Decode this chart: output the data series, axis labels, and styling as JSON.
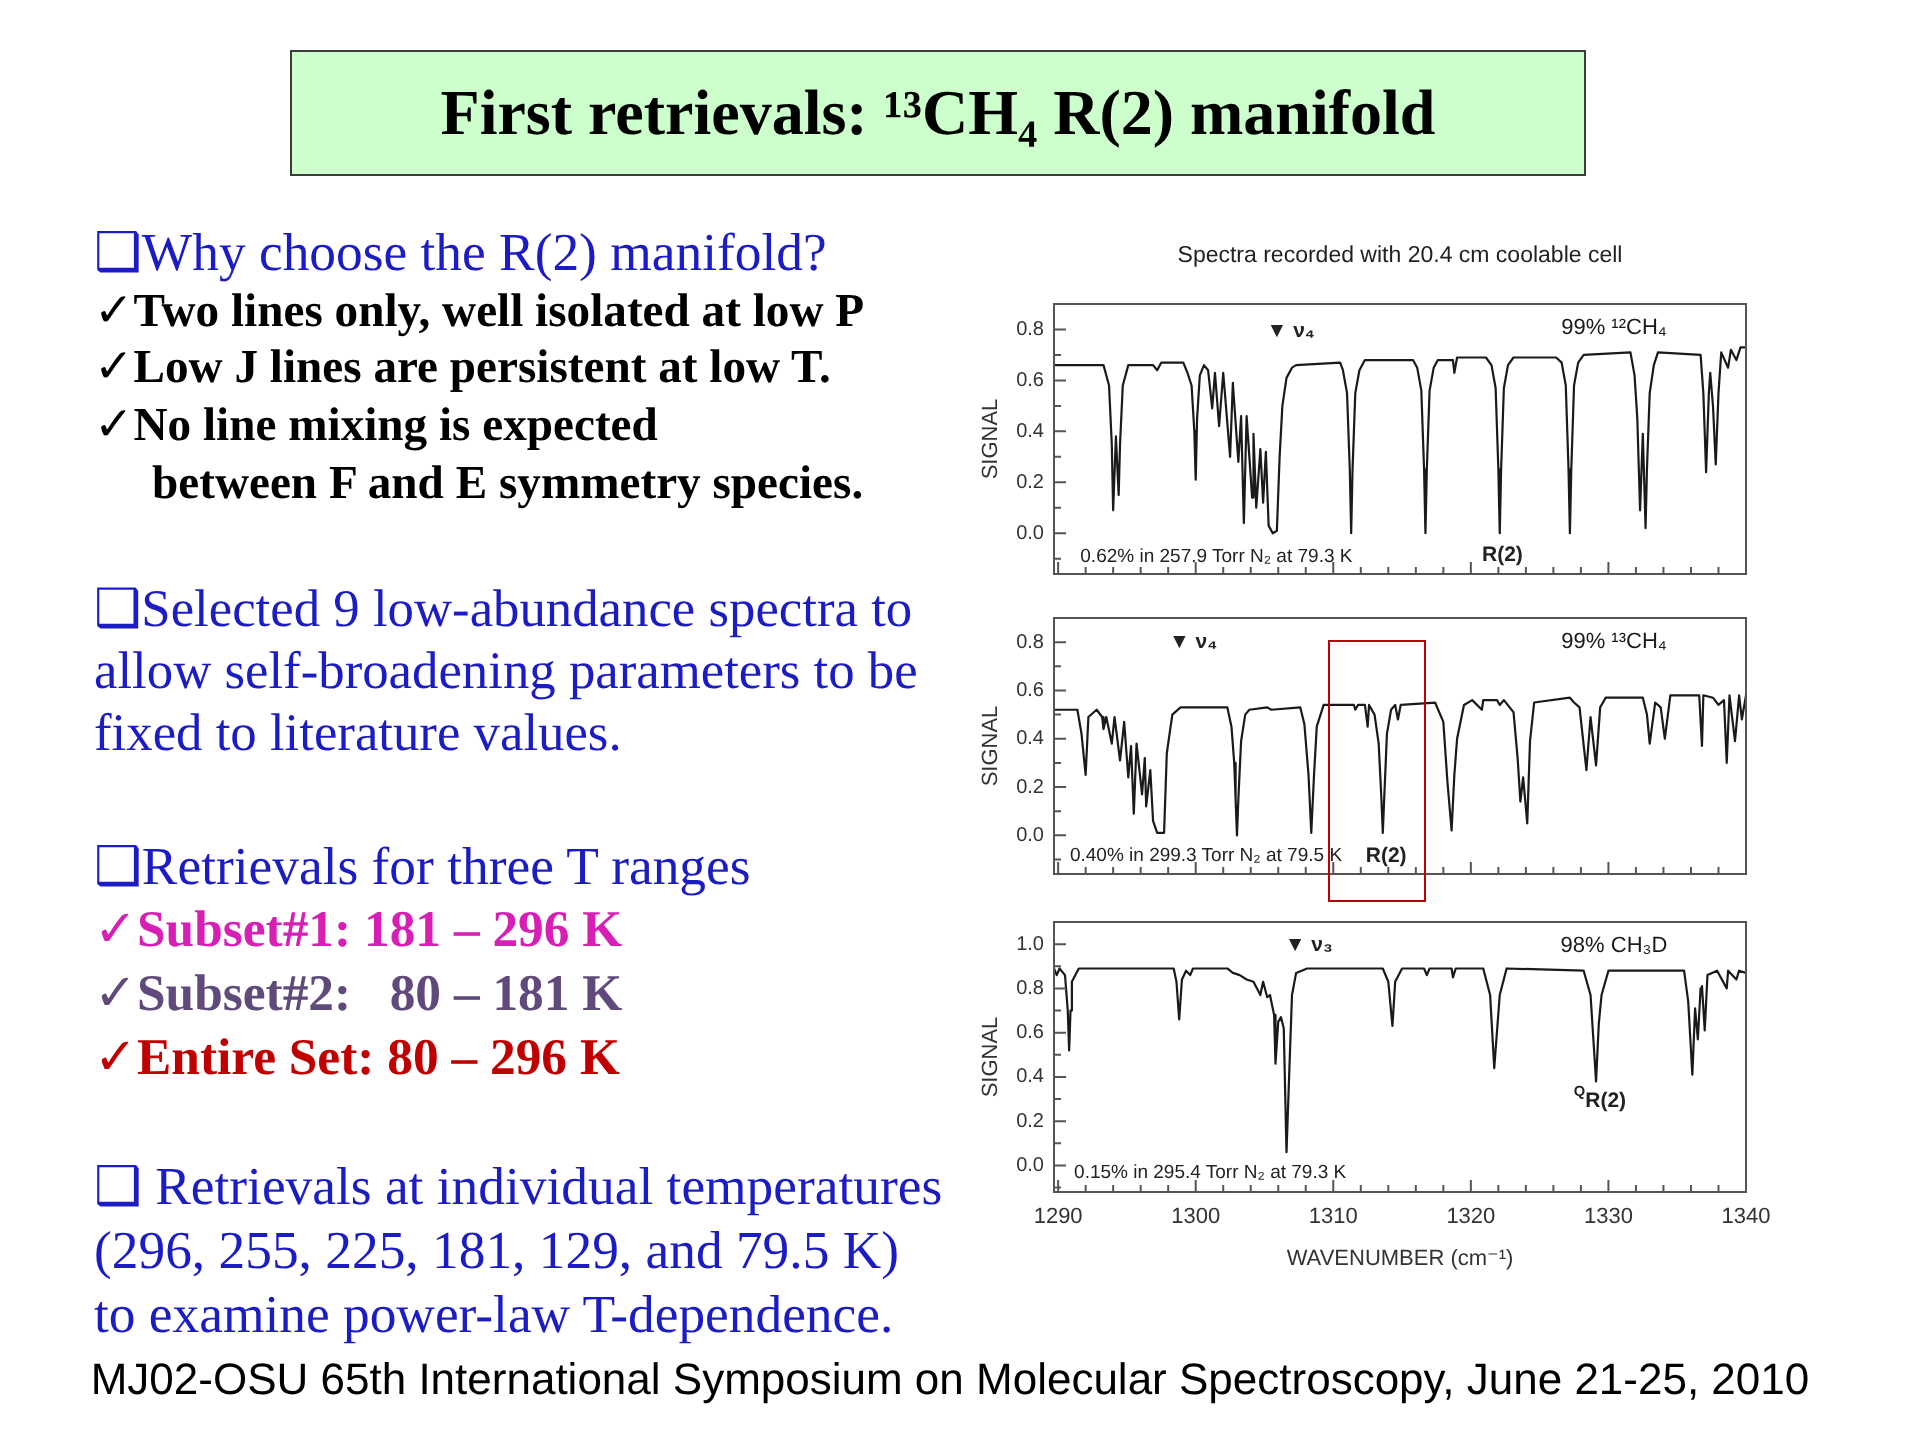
{
  "chart_data": [
    {
      "type": "other",
      "title": "First retrievals: ¹³CH₄ R(2) manifold",
      "annotations": [
        "❑Why choose the R(2) manifold?",
        "✓Two lines only, well isolated at low P",
        "✓Low J lines are persistent at low T.",
        "✓No line mixing is expected\nbetween F and E symmetry species.",
        "❑Selected 9 low-abundance spectra to\nallow self-broadening parameters to be\nfixed to literature values.",
        "❑Retrievals for three T ranges",
        "✓Subset#1: 181 – 296 K",
        "✓Subset#2:   80 – 181 K",
        "✓Entire Set: 80 – 296 K",
        "❑ Retrievals at individual temperatures\n(296, 255, 225, 181, 129, and 79.5 K)\nto examine power-law T-dependence.",
        "MJ02-OSU 65th International Symposium on Molecular Spectroscopy, June 21-25, 2010"
      ]
    },
    {
      "type": "line",
      "title": "Spectra recorded with 20.4 cm coolable cell",
      "ylabel": "SIGNAL",
      "tick_labels": "y",
      "x": [
        1289.7,
        1293.3,
        1293.7,
        1293.9,
        1294.0,
        1294.2,
        1294.4,
        1294.5,
        1294.7,
        1295.1,
        1296.9,
        1297.2,
        1297.5,
        1299.1,
        1299.4,
        1299.7,
        1299.9,
        1300.0,
        1300.1,
        1300.3,
        1300.6,
        1300.9,
        1301.2,
        1301.4,
        1301.7,
        1302.0,
        1302.5,
        1302.7,
        1303.1,
        1303.3,
        1303.5,
        1303.7,
        1304.1,
        1304.2,
        1304.4,
        1304.7,
        1304.9,
        1305.1,
        1305.3,
        1305.6,
        1305.9,
        1306.1,
        1306.3,
        1306.6,
        1307.0,
        1307.3,
        1310.5,
        1310.7,
        1311.0,
        1311.2,
        1311.3,
        1311.4,
        1311.6,
        1311.9,
        1312.3,
        1315.8,
        1316.1,
        1316.4,
        1316.6,
        1316.7,
        1316.8,
        1317.0,
        1317.3,
        1317.6,
        1318.7,
        1318.8,
        1319.0,
        1321.1,
        1321.5,
        1321.8,
        1322.0,
        1322.1,
        1322.2,
        1322.4,
        1322.7,
        1323.1,
        1326.2,
        1326.6,
        1326.9,
        1327.1,
        1327.2,
        1327.3,
        1327.5,
        1327.8,
        1328.2,
        1331.6,
        1331.9,
        1332.1,
        1332.3,
        1332.5,
        1332.7,
        1332.8,
        1333.0,
        1333.3,
        1333.6,
        1336.7,
        1336.9,
        1337.1,
        1337.3,
        1337.4,
        1337.6,
        1337.8,
        1338.0,
        1338.2,
        1338.7,
        1338.9,
        1339.3,
        1339.6,
        1340.0
      ],
      "series": [
        {
          "name": "99% ¹²CH₄",
          "color": "#1a1a1a",
          "values": [
            0.66,
            0.66,
            0.58,
            0.35,
            0.09,
            0.38,
            0.15,
            0.35,
            0.58,
            0.66,
            0.66,
            0.64,
            0.67,
            0.67,
            0.63,
            0.58,
            0.4,
            0.21,
            0.45,
            0.62,
            0.66,
            0.64,
            0.49,
            0.63,
            0.42,
            0.63,
            0.3,
            0.59,
            0.28,
            0.46,
            0.04,
            0.46,
            0.14,
            0.39,
            0.1,
            0.33,
            0.12,
            0.32,
            0.03,
            0.0,
            0.01,
            0.3,
            0.5,
            0.61,
            0.65,
            0.66,
            0.67,
            0.64,
            0.55,
            0.25,
            0.0,
            0.25,
            0.55,
            0.64,
            0.68,
            0.68,
            0.65,
            0.56,
            0.25,
            0.0,
            0.25,
            0.56,
            0.65,
            0.68,
            0.68,
            0.63,
            0.69,
            0.69,
            0.66,
            0.57,
            0.25,
            0.0,
            0.25,
            0.57,
            0.66,
            0.69,
            0.69,
            0.67,
            0.58,
            0.25,
            0.0,
            0.25,
            0.58,
            0.67,
            0.7,
            0.71,
            0.62,
            0.45,
            0.09,
            0.39,
            0.02,
            0.25,
            0.55,
            0.66,
            0.71,
            0.7,
            0.55,
            0.24,
            0.55,
            0.63,
            0.5,
            0.27,
            0.55,
            0.71,
            0.65,
            0.72,
            0.68,
            0.73,
            0.73
          ]
        }
      ],
      "xlim": [
        1289.7,
        1340
      ],
      "xticks": [
        1290,
        {
          "value": 1292,
          "label": null
        },
        {
          "value": 1294,
          "label": null
        },
        {
          "value": 1296,
          "label": null
        },
        {
          "value": 1298,
          "label": null
        },
        1300,
        {
          "value": 1302,
          "label": null
        },
        {
          "value": 1304,
          "label": null
        },
        {
          "value": 1306,
          "label": null
        },
        {
          "value": 1308,
          "label": null
        },
        1310,
        {
          "value": 1312,
          "label": null
        },
        {
          "value": 1314,
          "label": null
        },
        {
          "value": 1316,
          "label": null
        },
        {
          "value": 1318,
          "label": null
        },
        1320,
        {
          "value": 1322,
          "label": null
        },
        {
          "value": 1324,
          "label": null
        },
        {
          "value": 1326,
          "label": null
        },
        {
          "value": 1328,
          "label": null
        },
        1330,
        {
          "value": 1332,
          "label": null
        },
        {
          "value": 1334,
          "label": null
        },
        {
          "value": 1336,
          "label": null
        },
        {
          "value": 1338,
          "label": null
        },
        1340
      ],
      "ylim": [
        -0.16,
        0.9
      ],
      "yticks": [
        {
          "value": -0.1,
          "label": null
        },
        {
          "value": 0,
          "label": "0.0"
        },
        {
          "value": 0.1,
          "label": null
        },
        0.2,
        {
          "value": 0.3,
          "label": null
        },
        0.4,
        {
          "value": 0.5,
          "label": null
        },
        0.6,
        {
          "value": 0.7,
          "label": null
        },
        0.8
      ],
      "annotations": [
        "0.62% in 257.9 Torr N₂ at 79.3 K",
        "▼ ν₄",
        "R(2)"
      ]
    },
    {
      "type": "line",
      "ylabel": "SIGNAL",
      "tick_labels": "y",
      "x": [
        1289.7,
        1291.4,
        1291.7,
        1292.0,
        1292.2,
        1292.8,
        1293.2,
        1293.3,
        1293.5,
        1293.9,
        1294.1,
        1294.5,
        1294.8,
        1295.1,
        1295.3,
        1295.5,
        1295.7,
        1296.1,
        1296.3,
        1296.4,
        1296.7,
        1296.9,
        1297.2,
        1297.7,
        1297.9,
        1298.3,
        1298.9,
        1302.3,
        1302.6,
        1302.8,
        1302.9,
        1303.0,
        1303.1,
        1303.3,
        1303.6,
        1303.9,
        1305.2,
        1305.5,
        1307.6,
        1307.9,
        1308.2,
        1308.4,
        1308.6,
        1308.8,
        1309.3,
        1311.5,
        1311.6,
        1311.8,
        1312.3,
        1312.5,
        1312.6,
        1313.0,
        1313.3,
        1313.5,
        1313.6,
        1313.7,
        1313.9,
        1314.2,
        1314.5,
        1314.7,
        1314.9,
        1317.4,
        1318.0,
        1318.3,
        1318.6,
        1318.8,
        1319.0,
        1319.5,
        1320.1,
        1320.8,
        1320.9,
        1321.9,
        1322.1,
        1322.4,
        1323.1,
        1323.4,
        1323.6,
        1323.8,
        1324.1,
        1324.3,
        1324.6,
        1327.2,
        1327.5,
        1327.9,
        1328.4,
        1328.7,
        1329.1,
        1329.4,
        1329.8,
        1332.5,
        1332.8,
        1333.0,
        1333.4,
        1333.8,
        1334.1,
        1334.5,
        1336.6,
        1336.8,
        1336.9,
        1337.6,
        1338.0,
        1338.4,
        1338.6,
        1338.8,
        1339.2,
        1339.5,
        1339.7,
        1340.0
      ],
      "series": [
        {
          "name": "99% ¹³CH₄",
          "color": "#1a1a1a",
          "values": [
            0.52,
            0.52,
            0.42,
            0.25,
            0.49,
            0.52,
            0.49,
            0.44,
            0.49,
            0.38,
            0.49,
            0.31,
            0.47,
            0.24,
            0.37,
            0.09,
            0.38,
            0.17,
            0.32,
            0.12,
            0.27,
            0.06,
            0.01,
            0.01,
            0.34,
            0.5,
            0.53,
            0.53,
            0.45,
            0.3,
            0.15,
            0.0,
            0.15,
            0.39,
            0.5,
            0.52,
            0.53,
            0.52,
            0.53,
            0.46,
            0.25,
            0.01,
            0.25,
            0.45,
            0.54,
            0.54,
            0.52,
            0.54,
            0.54,
            0.45,
            0.54,
            0.5,
            0.38,
            0.15,
            0.01,
            0.15,
            0.42,
            0.52,
            0.54,
            0.48,
            0.54,
            0.55,
            0.47,
            0.22,
            0.02,
            0.25,
            0.4,
            0.54,
            0.56,
            0.52,
            0.56,
            0.56,
            0.54,
            0.56,
            0.51,
            0.32,
            0.14,
            0.24,
            0.05,
            0.39,
            0.55,
            0.57,
            0.55,
            0.53,
            0.27,
            0.49,
            0.29,
            0.53,
            0.57,
            0.57,
            0.5,
            0.38,
            0.55,
            0.53,
            0.4,
            0.58,
            0.58,
            0.37,
            0.58,
            0.57,
            0.54,
            0.56,
            0.3,
            0.58,
            0.39,
            0.58,
            0.48,
            0.58
          ]
        }
      ],
      "xlim": [
        1289.7,
        1340
      ],
      "xticks": [
        1290,
        {
          "value": 1292,
          "label": null
        },
        {
          "value": 1294,
          "label": null
        },
        {
          "value": 1296,
          "label": null
        },
        {
          "value": 1298,
          "label": null
        },
        1300,
        {
          "value": 1302,
          "label": null
        },
        {
          "value": 1304,
          "label": null
        },
        {
          "value": 1306,
          "label": null
        },
        {
          "value": 1308,
          "label": null
        },
        1310,
        {
          "value": 1312,
          "label": null
        },
        {
          "value": 1314,
          "label": null
        },
        {
          "value": 1316,
          "label": null
        },
        {
          "value": 1318,
          "label": null
        },
        1320,
        {
          "value": 1322,
          "label": null
        },
        {
          "value": 1324,
          "label": null
        },
        {
          "value": 1326,
          "label": null
        },
        {
          "value": 1328,
          "label": null
        },
        1330,
        {
          "value": 1332,
          "label": null
        },
        {
          "value": 1334,
          "label": null
        },
        {
          "value": 1336,
          "label": null
        },
        {
          "value": 1338,
          "label": null
        },
        1340
      ],
      "ylim": [
        -0.16,
        0.9
      ],
      "yticks": [
        {
          "value": -0.1,
          "label": null
        },
        {
          "value": 0,
          "label": "0.0"
        },
        {
          "value": 0.1,
          "label": null
        },
        0.2,
        {
          "value": 0.3,
          "label": null
        },
        0.4,
        {
          "value": 0.5,
          "label": null
        },
        0.6,
        {
          "value": 0.7,
          "label": null
        },
        0.8
      ],
      "annotations": [
        "0.40% in 299.3 Torr N₂ at 79.5 K",
        "▼ ν₄",
        "R(2)"
      ]
    },
    {
      "type": "line",
      "ylabel": "SIGNAL",
      "xlabel": "WAVENUMBER (cm⁻¹)",
      "x": [
        1289.7,
        1289.9,
        1290.1,
        1290.5,
        1290.7,
        1290.8,
        1290.9,
        1291.0,
        1291.5,
        1298.4,
        1298.6,
        1298.8,
        1299.0,
        1299.3,
        1299.6,
        1299.8,
        1302.3,
        1302.7,
        1303.2,
        1303.7,
        1304.2,
        1304.7,
        1304.9,
        1305.2,
        1305.4,
        1305.7,
        1305.8,
        1306.0,
        1306.2,
        1306.4,
        1306.6,
        1306.8,
        1307.0,
        1307.3,
        1308.1,
        1313.6,
        1314.0,
        1314.3,
        1314.5,
        1315.0,
        1316.6,
        1316.8,
        1317.0,
        1318.6,
        1318.7,
        1318.9,
        1320.9,
        1321.4,
        1321.7,
        1322.1,
        1322.6,
        1328.2,
        1328.7,
        1329.1,
        1329.3,
        1329.5,
        1330.0,
        1335.5,
        1335.8,
        1336.1,
        1336.3,
        1336.5,
        1336.7,
        1336.8,
        1337.0,
        1337.2,
        1337.9,
        1338.6,
        1338.7,
        1339.3,
        1339.5,
        1340.0
      ],
      "series": [
        {
          "name": "98% CH₃D",
          "color": "#1a1a1a",
          "values": [
            0.89,
            0.86,
            0.89,
            0.86,
            0.7,
            0.52,
            0.7,
            0.83,
            0.89,
            0.89,
            0.83,
            0.66,
            0.84,
            0.88,
            0.86,
            0.89,
            0.89,
            0.87,
            0.86,
            0.84,
            0.83,
            0.77,
            0.83,
            0.76,
            0.77,
            0.68,
            0.46,
            0.65,
            0.67,
            0.62,
            0.06,
            0.42,
            0.77,
            0.87,
            0.89,
            0.89,
            0.83,
            0.63,
            0.83,
            0.89,
            0.89,
            0.86,
            0.89,
            0.89,
            0.85,
            0.89,
            0.89,
            0.77,
            0.44,
            0.77,
            0.89,
            0.88,
            0.77,
            0.38,
            0.64,
            0.77,
            0.88,
            0.88,
            0.74,
            0.41,
            0.71,
            0.57,
            0.8,
            0.81,
            0.61,
            0.86,
            0.88,
            0.8,
            0.88,
            0.84,
            0.88,
            0.87
          ]
        }
      ],
      "xlim": [
        1289.7,
        1340
      ],
      "xticks": [
        1290,
        {
          "value": 1292,
          "label": null
        },
        {
          "value": 1294,
          "label": null
        },
        {
          "value": 1296,
          "label": null
        },
        {
          "value": 1298,
          "label": null
        },
        1300,
        {
          "value": 1302,
          "label": null
        },
        {
          "value": 1304,
          "label": null
        },
        {
          "value": 1306,
          "label": null
        },
        {
          "value": 1308,
          "label": null
        },
        1310,
        {
          "value": 1312,
          "label": null
        },
        {
          "value": 1314,
          "label": null
        },
        {
          "value": 1316,
          "label": null
        },
        {
          "value": 1318,
          "label": null
        },
        1320,
        {
          "value": 1322,
          "label": null
        },
        {
          "value": 1324,
          "label": null
        },
        {
          "value": 1326,
          "label": null
        },
        {
          "value": 1328,
          "label": null
        },
        1330,
        {
          "value": 1332,
          "label": null
        },
        {
          "value": 1334,
          "label": null
        },
        {
          "value": 1336,
          "label": null
        },
        {
          "value": 1338,
          "label": null
        },
        1340
      ],
      "ylim": [
        -0.12,
        1.1
      ],
      "yticks": [
        {
          "value": -0.1,
          "label": null
        },
        {
          "value": 0,
          "label": "0.0"
        },
        {
          "value": 0.1,
          "label": null
        },
        0.2,
        {
          "value": 0.3,
          "label": null
        },
        0.4,
        {
          "value": 0.5,
          "label": null
        },
        0.6,
        {
          "value": 0.7,
          "label": null
        },
        0.8,
        {
          "value": 0.9,
          "label": null
        },
        {
          "value": 1,
          "label": "1.0"
        }
      ],
      "annotations": [
        "0.15% in 295.4 Torr N₂ at 79.3 K",
        "▼ ν₃",
        "$^{Q}$R(2)"
      ]
    }
  ]
}
